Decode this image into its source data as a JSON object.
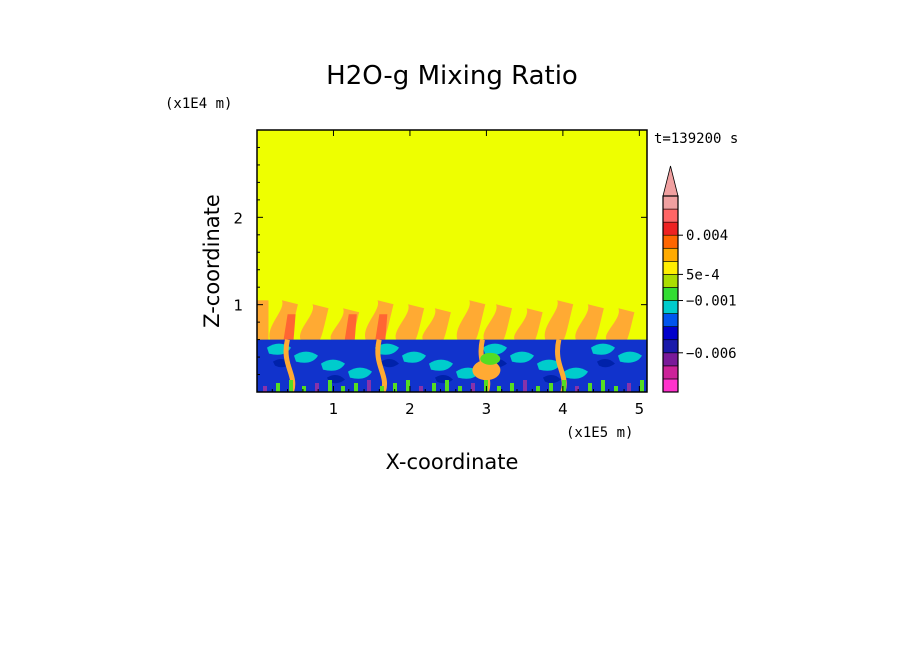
{
  "chart_data": {
    "type": "heatmap",
    "title": "H2O-g Mixing Ratio",
    "xlabel": "X-coordinate",
    "ylabel": "Z-coordinate",
    "x_units": "(x1E5 m)",
    "y_units": "(x1E4 m)",
    "time_label": "t=139200 s",
    "xlim": [
      0,
      5.1
    ],
    "ylim": [
      0,
      3
    ],
    "x_ticks": [
      1,
      2,
      3,
      4,
      5
    ],
    "y_ticks": [
      1,
      2
    ],
    "upper_layer_top": 3,
    "moist_layer_top": 1.05,
    "dry_layer_top": 0.6,
    "colorbar": {
      "colors": [
        "#ff33cc",
        "#cc2299",
        "#7a1a99",
        "#1a1aaa",
        "#0000cc",
        "#0055ee",
        "#00cccc",
        "#33dd33",
        "#aadd00",
        "#ffee00",
        "#ffaa00",
        "#ff6600",
        "#ee2222",
        "#ff6666",
        "#f0a0a0"
      ],
      "labeled_ticks": [
        {
          "label": "0.004",
          "band": 12
        },
        {
          "label": "5e-4",
          "band": 9
        },
        {
          "label": "−0.001",
          "band": 7
        },
        {
          "label": "−0.006",
          "band": 3
        }
      ]
    },
    "field_colors": {
      "upper": "#eeff00",
      "dry": "#1133cc",
      "dry_alt": "#0022aa",
      "cyan": "#00cccc",
      "green": "#55dd22",
      "orange": "#ffaa33",
      "red": "#ff6633",
      "purple": "#8833aa"
    }
  }
}
